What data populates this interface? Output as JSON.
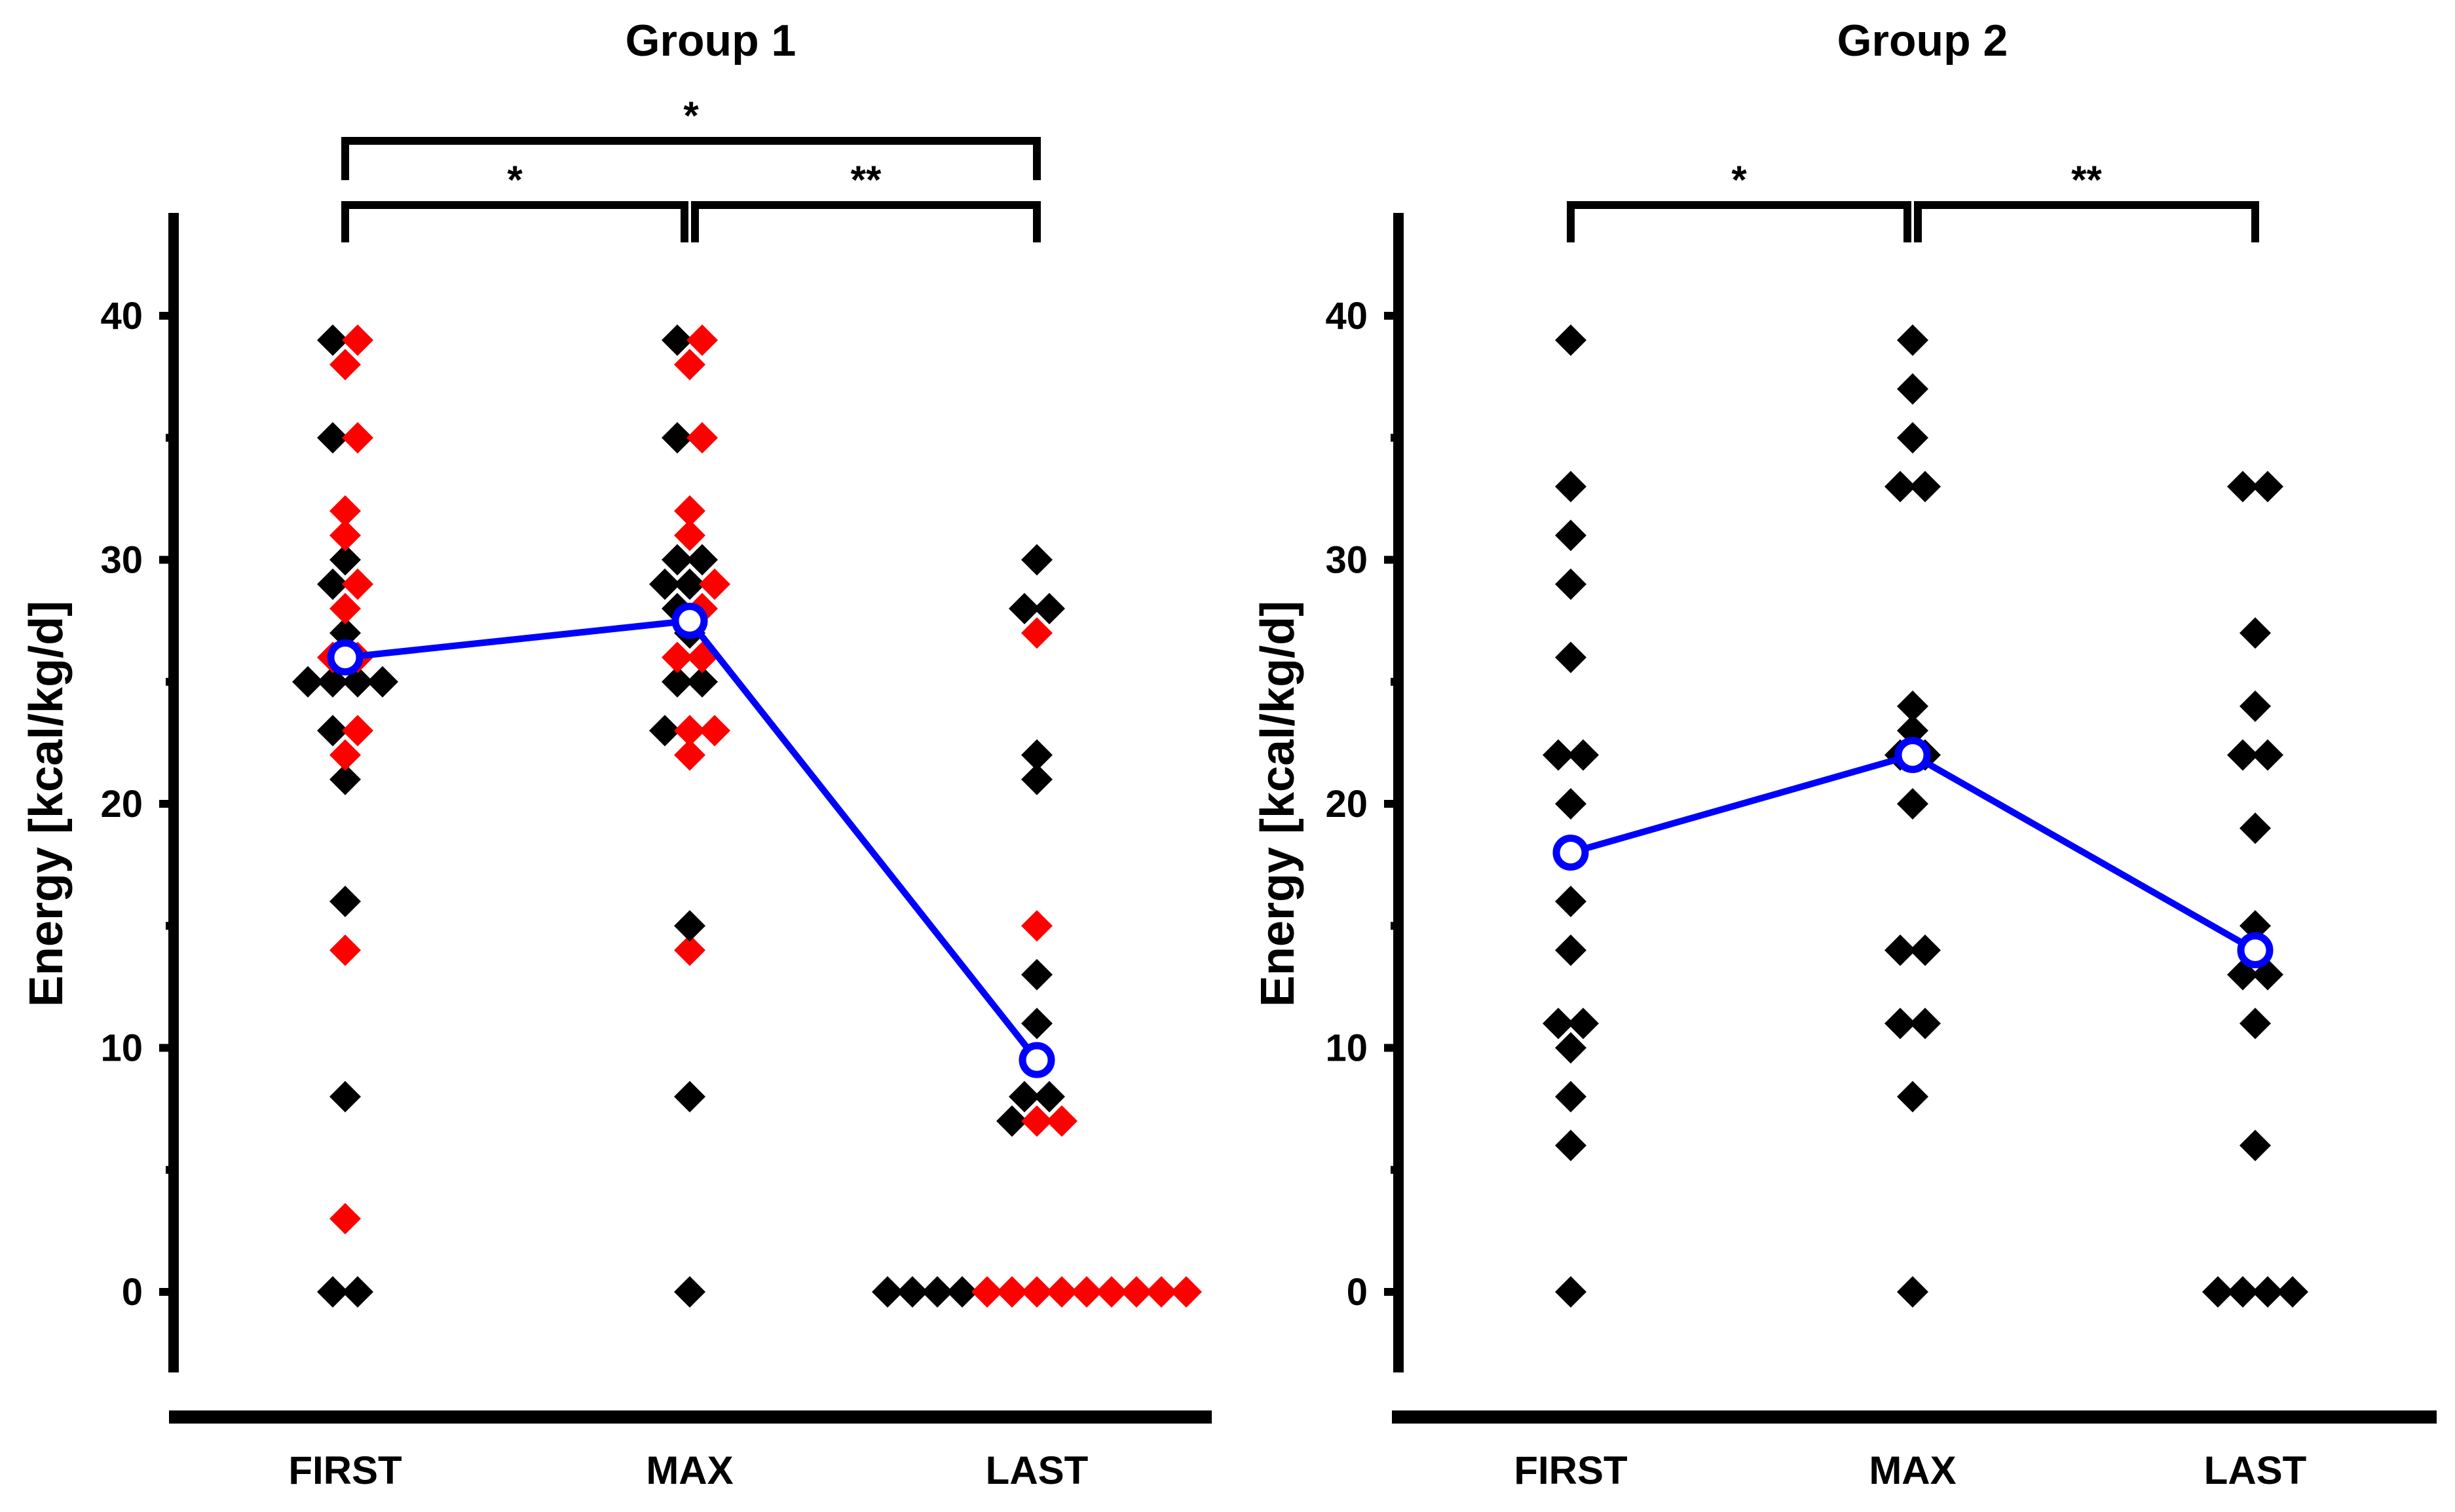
{
  "chart_data": [
    {
      "type": "scatter",
      "title": "Group 1",
      "ylabel": "Energy [kcal/kg/d]",
      "categories": [
        "FIRST",
        "MAX",
        "LAST"
      ],
      "ylim": [
        -3,
        44
      ],
      "yticks": [
        0,
        10,
        20,
        30,
        40
      ],
      "colors": {
        "black": "#000000",
        "red": "#ff0000",
        "mean": "#0000ff"
      },
      "series": [
        {
          "color": "black",
          "points": [
            {
              "x": "FIRST",
              "values": [
                39,
                35,
                30,
                29,
                27,
                25,
                25,
                25,
                25,
                23,
                21,
                16,
                8,
                0,
                0
              ]
            },
            {
              "x": "MAX",
              "values": [
                39,
                35,
                30,
                30,
                29,
                29,
                28,
                27,
                25,
                25,
                23,
                15,
                8,
                0
              ]
            },
            {
              "x": "LAST",
              "values": [
                30,
                28,
                28,
                22,
                21,
                13,
                11,
                8,
                8,
                7,
                0,
                0,
                0,
                0
              ]
            }
          ]
        },
        {
          "color": "red",
          "points": [
            {
              "x": "FIRST",
              "values": [
                39,
                38,
                35,
                32,
                31,
                29,
                28,
                26,
                26,
                23,
                22,
                14,
                3
              ]
            },
            {
              "x": "MAX",
              "values": [
                39,
                38,
                35,
                32,
                31,
                29,
                28,
                26,
                26,
                23,
                23,
                22,
                14
              ]
            },
            {
              "x": "LAST",
              "values": [
                27,
                15,
                7,
                7,
                0,
                0,
                0,
                0,
                0,
                0,
                0,
                0,
                0
              ]
            }
          ]
        }
      ],
      "mean": {
        "FIRST": 26,
        "MAX": 27.5,
        "LAST": 9.5
      },
      "significance": [
        {
          "from": "FIRST",
          "to": "MAX",
          "label": "*"
        },
        {
          "from": "MAX",
          "to": "LAST",
          "label": "**"
        },
        {
          "from": "FIRST",
          "to": "LAST",
          "label": "*"
        }
      ]
    },
    {
      "type": "scatter",
      "title": "Group 2",
      "ylabel": "Energy [kcal/kg/d]",
      "categories": [
        "FIRST",
        "MAX",
        "LAST"
      ],
      "ylim": [
        -3,
        44
      ],
      "yticks": [
        0,
        10,
        20,
        30,
        40
      ],
      "colors": {
        "black": "#000000",
        "mean": "#0000ff"
      },
      "series": [
        {
          "color": "black",
          "points": [
            {
              "x": "FIRST",
              "values": [
                39,
                33,
                31,
                29,
                26,
                22,
                22,
                20,
                18,
                16,
                14,
                11,
                11,
                10,
                8,
                6,
                0
              ]
            },
            {
              "x": "MAX",
              "values": [
                39,
                37,
                35,
                33,
                33,
                24,
                23,
                22,
                22,
                20,
                14,
                14,
                11,
                11,
                8,
                0
              ]
            },
            {
              "x": "LAST",
              "values": [
                33,
                33,
                27,
                24,
                22,
                22,
                19,
                15,
                14,
                13,
                13,
                11,
                6,
                0,
                0,
                0,
                0
              ]
            }
          ]
        }
      ],
      "mean": {
        "FIRST": 18,
        "MAX": 22,
        "LAST": 14
      },
      "significance": [
        {
          "from": "FIRST",
          "to": "MAX",
          "label": "*"
        },
        {
          "from": "MAX",
          "to": "LAST",
          "label": "**"
        }
      ]
    }
  ]
}
